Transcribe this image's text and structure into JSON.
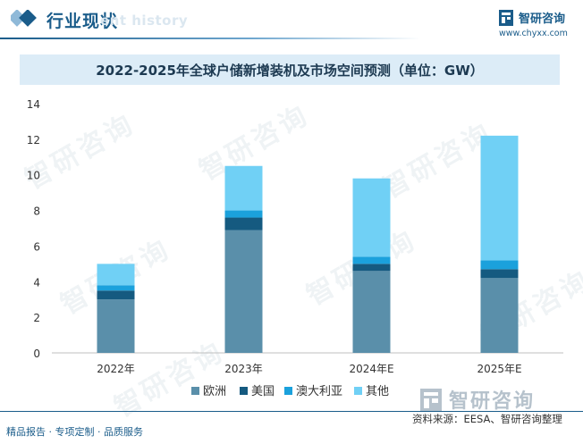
{
  "header": {
    "title": "行业现状",
    "subtitle": "ent history"
  },
  "brand": {
    "name": "智研咨询",
    "url": "www.chyxx.com"
  },
  "watermark_text": "智研咨询",
  "footer": {
    "left": "精品报告 · 专项定制 · 品质服务",
    "source": "资料来源：EESA、智研咨询整理",
    "brand_name": "智研咨询"
  },
  "colors": {
    "europe": "#5a8faa",
    "usa": "#155a80",
    "australia": "#1ba1dc",
    "other": "#70d0f5"
  },
  "chart_data": {
    "type": "bar",
    "stacked": true,
    "title": "2022-2025年全球户储新增装机及市场空间预测（单位：GW）",
    "categories": [
      "2022年",
      "2023年",
      "2024年E",
      "2025年E"
    ],
    "series": [
      {
        "name": "欧洲",
        "values": [
          3.0,
          6.9,
          4.6,
          4.2
        ]
      },
      {
        "name": "美国",
        "values": [
          0.5,
          0.7,
          0.4,
          0.5
        ]
      },
      {
        "name": "澳大利亚",
        "values": [
          0.3,
          0.4,
          0.4,
          0.5
        ]
      },
      {
        "name": "其他",
        "values": [
          1.2,
          2.5,
          4.4,
          7.0
        ]
      }
    ],
    "ylim": [
      0,
      14
    ],
    "yticks": [
      0,
      2,
      4,
      6,
      8,
      10,
      12,
      14
    ],
    "xlabel": "",
    "ylabel": "",
    "legend_position": "bottom"
  }
}
